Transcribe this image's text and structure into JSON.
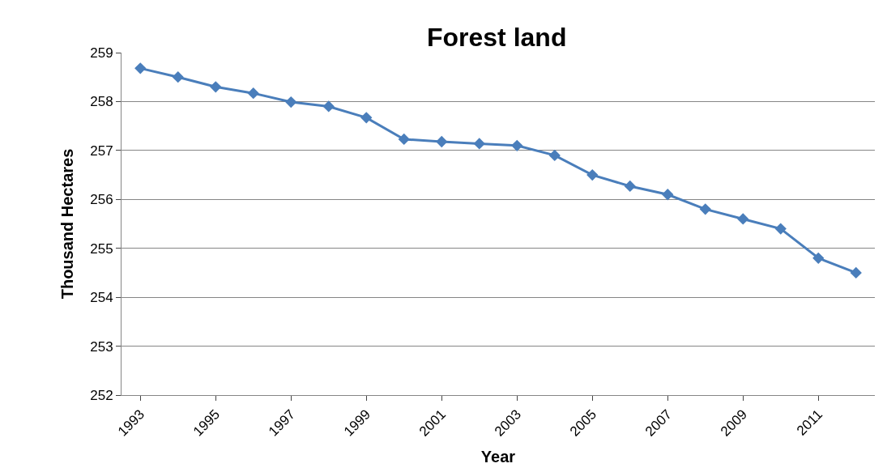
{
  "chart_data": {
    "type": "line",
    "title": "Forest land",
    "xlabel": "Year",
    "ylabel": "Thousand Hectares",
    "categories": [
      "1993",
      null,
      "1995",
      null,
      "1997",
      null,
      "1999",
      null,
      "2001",
      null,
      "2003",
      null,
      "2005",
      null,
      "2007",
      null,
      "2009",
      null,
      "2011",
      null
    ],
    "series": [
      {
        "color": "#4a7ebb",
        "values": [
          258.68,
          258.5,
          258.3,
          258.17,
          257.99,
          257.9,
          257.67,
          257.23,
          257.18,
          257.14,
          257.1,
          256.9,
          256.5,
          256.27,
          256.1,
          255.8,
          255.6,
          255.4,
          254.8,
          254.5
        ]
      }
    ],
    "ylim": [
      252,
      259
    ],
    "yticks": [
      252,
      253,
      254,
      255,
      256,
      257,
      258,
      259
    ],
    "grid": "y",
    "marker": "diamond",
    "line_style": "solid"
  }
}
